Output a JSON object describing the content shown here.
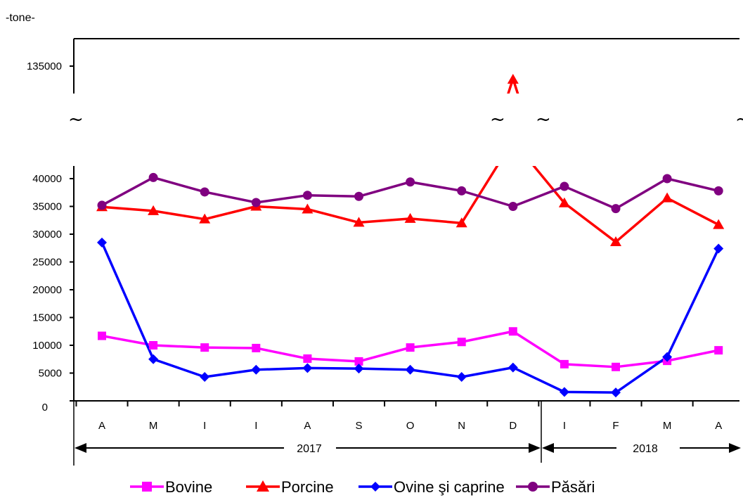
{
  "chart_data": {
    "type": "line",
    "unit_label": "-tone-",
    "break_marker": "~",
    "categories": [
      "A",
      "M",
      "I",
      "I",
      "A",
      "S",
      "O",
      "N",
      "D",
      "I",
      "F",
      "M",
      "A"
    ],
    "year_groups": [
      {
        "label": "2017",
        "from": 0,
        "to": 8
      },
      {
        "label": "2018",
        "from": 9,
        "to": 12
      }
    ],
    "y_ticks_lower": [
      "0",
      "5000",
      "10000",
      "15000",
      "20000",
      "25000",
      "30000",
      "35000",
      "40000"
    ],
    "y_tick_upper": "135000",
    "ylim_lower": [
      0,
      40000
    ],
    "series": [
      {
        "name": "Bovine",
        "color": "#ff00ff",
        "marker": "square",
        "values": [
          11700,
          10000,
          9600,
          9500,
          7600,
          7100,
          9600,
          10600,
          12500,
          6600,
          6100,
          7200,
          9100
        ]
      },
      {
        "name": "Porcine",
        "color": "#ff0000",
        "marker": "triangle",
        "values": [
          34900,
          34200,
          32700,
          35000,
          34500,
          32100,
          32800,
          32000,
          135000,
          35600,
          28600,
          36500,
          31700
        ]
      },
      {
        "name": "Ovine şi caprine",
        "color": "#0000ff",
        "marker": "diamond",
        "values": [
          28500,
          7500,
          4300,
          5600,
          5900,
          5800,
          5600,
          4300,
          6000,
          1600,
          1500,
          7900,
          27400
        ]
      },
      {
        "name": "Păsări",
        "color": "#800080",
        "marker": "circle",
        "values": [
          35200,
          40200,
          37600,
          35700,
          37000,
          36800,
          39400,
          37800,
          35000,
          38600,
          34600,
          40000,
          37800
        ]
      }
    ]
  }
}
